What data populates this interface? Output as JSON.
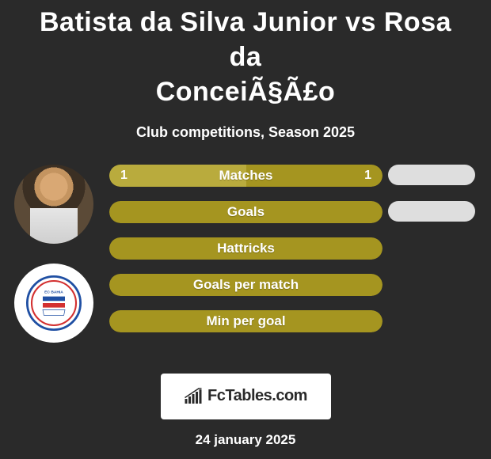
{
  "colors": {
    "background": "#2a2a2a",
    "text": "#ffffff",
    "bar_olive": "#a59520",
    "bar_olive_light": "#b9ab3d",
    "pill_gray": "#dedede",
    "brand_bg": "#ffffff",
    "brand_text": "#2a2a2a",
    "club_blue": "#1f4fa3",
    "club_red": "#d33030",
    "club_white": "#ffffff"
  },
  "typography": {
    "title_fontsize": 34,
    "subtitle_fontsize": 18,
    "bar_label_fontsize": 17,
    "bar_value_fontsize": 16,
    "brand_fontsize": 20,
    "date_fontsize": 17
  },
  "header": {
    "title_line1": "Batista da Silva Junior vs Rosa da",
    "title_line2": "ConceiÃ§Ã£o",
    "subtitle": "Club competitions, Season 2025"
  },
  "player1": {
    "name": "Batista da Silva Junior"
  },
  "player2": {
    "name": "Rosa da ConceiÃ§Ã£o",
    "club_badge_text": "ESPORTE CLUBE BAHIA",
    "club_year": "1931"
  },
  "comparison": {
    "type": "h2h-bar",
    "bar_radius": 14,
    "rows": [
      {
        "label": "Matches",
        "left": "1",
        "right": "1",
        "left_pct": 50,
        "right_pct": 50,
        "show_values": true,
        "show_pill": true
      },
      {
        "label": "Goals",
        "left": "",
        "right": "",
        "left_pct": 0,
        "right_pct": 0,
        "show_values": false,
        "show_pill": true
      },
      {
        "label": "Hattricks",
        "left": "",
        "right": "",
        "left_pct": 0,
        "right_pct": 0,
        "show_values": false,
        "show_pill": false
      },
      {
        "label": "Goals per match",
        "left": "",
        "right": "",
        "left_pct": 0,
        "right_pct": 0,
        "show_values": false,
        "show_pill": false
      },
      {
        "label": "Min per goal",
        "left": "",
        "right": "",
        "left_pct": 0,
        "right_pct": 0,
        "show_values": false,
        "show_pill": false
      }
    ]
  },
  "brand": {
    "name": "FcTables.com"
  },
  "footer": {
    "date": "24 january 2025"
  }
}
